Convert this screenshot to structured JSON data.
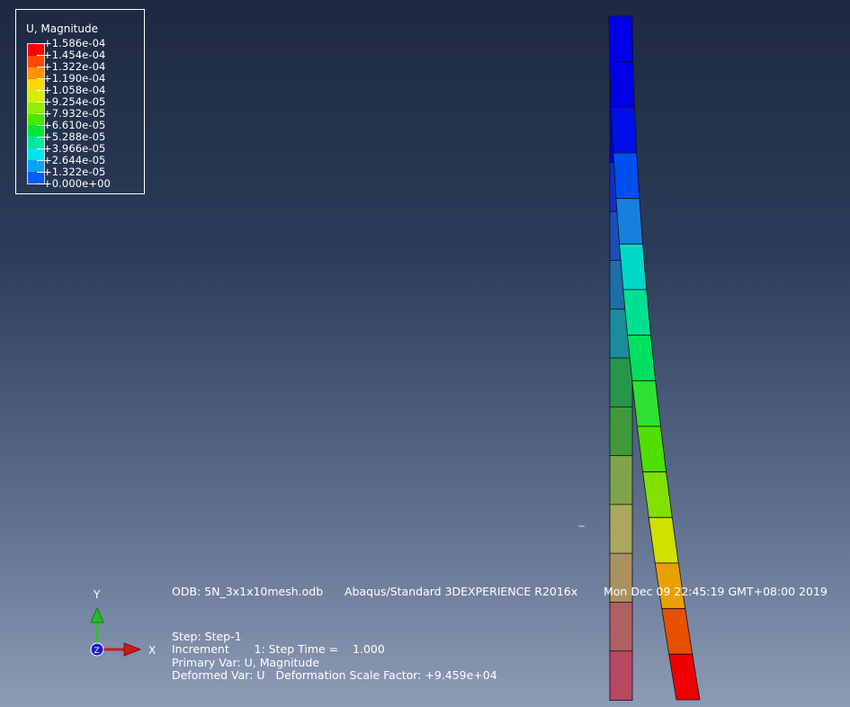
{
  "legend": {
    "title": "U, Magnitude",
    "values": [
      "+1.586e-04",
      "+1.454e-04",
      "+1.322e-04",
      "+1.190e-04",
      "+1.058e-04",
      "+9.254e-05",
      "+7.932e-05",
      "+6.610e-05",
      "+5.288e-05",
      "+3.966e-05",
      "+2.644e-05",
      "+1.322e-05",
      "+0.000e+00"
    ],
    "colors": [
      "#ff0000",
      "#ff4a00",
      "#ff9200",
      "#ffd900",
      "#d4f000",
      "#8ff000",
      "#46ea00",
      "#00e83a",
      "#00e8a0",
      "#00e6e6",
      "#00a6ff",
      "#005dff",
      "#0000ff"
    ]
  },
  "info": {
    "odb": "ODB: 5N_3x1x10mesh.odb",
    "solver": "Abaqus/Standard 3DEXPERIENCE R2016x",
    "date": "Mon Dec 09 22:45:19 GMT+08:00 2019",
    "step": "Step: Step-1",
    "increment": "Increment       1: Step Time =    1.000",
    "primary": "Primary Var: U, Magnitude",
    "deformed": "Deformed Var: U   Deformation Scale Factor: +9.459e+04"
  },
  "triad": {
    "y": "Y",
    "x": "X",
    "z": "Z"
  },
  "model": {
    "undeformed_colors": [
      "#0000e6",
      "#0000e0",
      "#0000dc",
      "#1030c8",
      "#1a4fb6",
      "#1e6ea8",
      "#1c8c9a",
      "#26964c",
      "#3e9a3a",
      "#7ea448",
      "#aaa85c",
      "#ac9060",
      "#b06060",
      "#b84860"
    ],
    "deformed_colors": [
      "#0000e6",
      "#0000e8",
      "#0010ea",
      "#0050ee",
      "#1680e0",
      "#00d8c8",
      "#00e090",
      "#00e060",
      "#30e030",
      "#50e000",
      "#80e000",
      "#d0e000",
      "#e8a000",
      "#e85000",
      "#f00000"
    ]
  }
}
